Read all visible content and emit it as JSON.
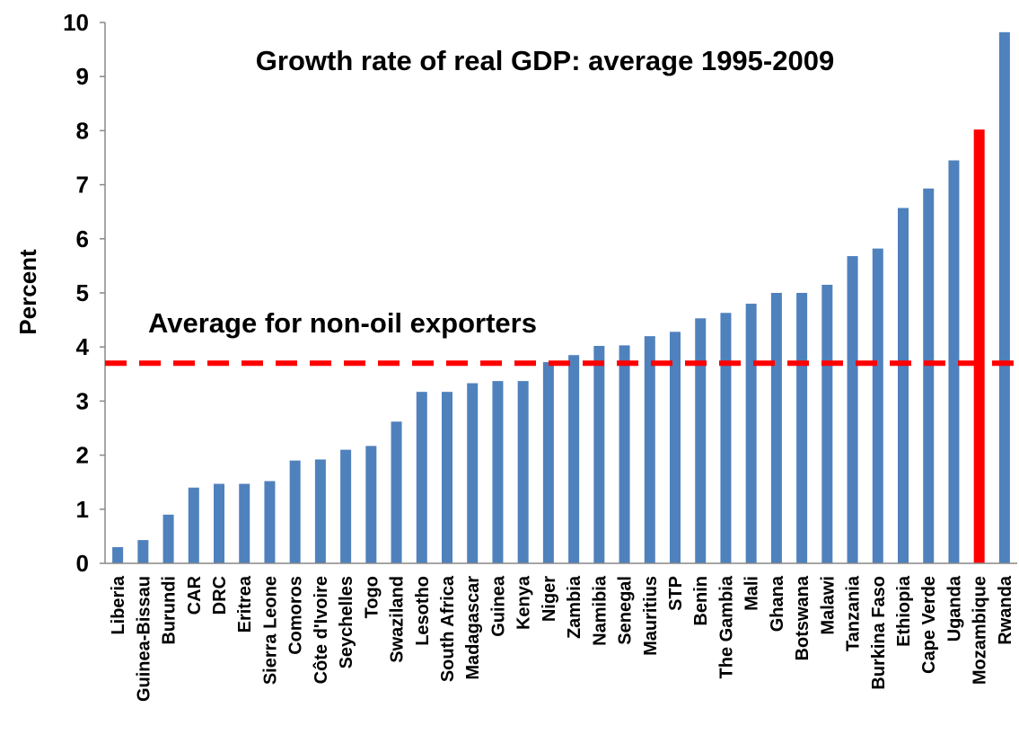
{
  "chart_data": {
    "type": "bar",
    "title": "Growth rate of real GDP: average 1995-2009",
    "xlabel": "",
    "ylabel": "Percent",
    "ylim": [
      0,
      10
    ],
    "yticks": [
      0,
      1,
      2,
      3,
      4,
      5,
      6,
      7,
      8,
      9,
      10
    ],
    "grid": false,
    "legend": "none",
    "categories": [
      "Liberia",
      "Guinea-Bissau",
      "Burundi",
      "CAR",
      "DRC",
      "Eritrea",
      "Sierra Leone",
      "Comoros",
      "Côte d'Ivoire",
      "Seychelles",
      "Togo",
      "Swaziland",
      "Lesotho",
      "South Africa",
      "Madagascar",
      "Guinea",
      "Kenya",
      "Niger",
      "Zambia",
      "Namibia",
      "Senegal",
      "Mauritius",
      "STP",
      "Benin",
      "The Gambia",
      "Mali",
      "Ghana",
      "Botswana",
      "Malawi",
      "Tanzania",
      "Burkina Faso",
      "Ethiopia",
      "Cape Verde",
      "Uganda",
      "Mozambique",
      "Rwanda"
    ],
    "values": [
      0.3,
      0.43,
      0.9,
      1.4,
      1.47,
      1.47,
      1.52,
      1.9,
      1.92,
      2.1,
      2.17,
      2.62,
      3.17,
      3.17,
      3.33,
      3.37,
      3.37,
      3.72,
      3.85,
      4.02,
      4.03,
      4.2,
      4.28,
      4.53,
      4.63,
      4.8,
      5.0,
      5.0,
      5.15,
      5.68,
      5.82,
      6.57,
      6.93,
      7.45,
      8.02,
      9.82
    ],
    "highlight": {
      "category": "Mozambique",
      "color": "#ff0000"
    },
    "bar_color": "#4f81bd",
    "reference_line": {
      "label": "Average for non-oil exporters",
      "value": 3.7,
      "color": "#ff0000",
      "style": "dashed"
    }
  }
}
